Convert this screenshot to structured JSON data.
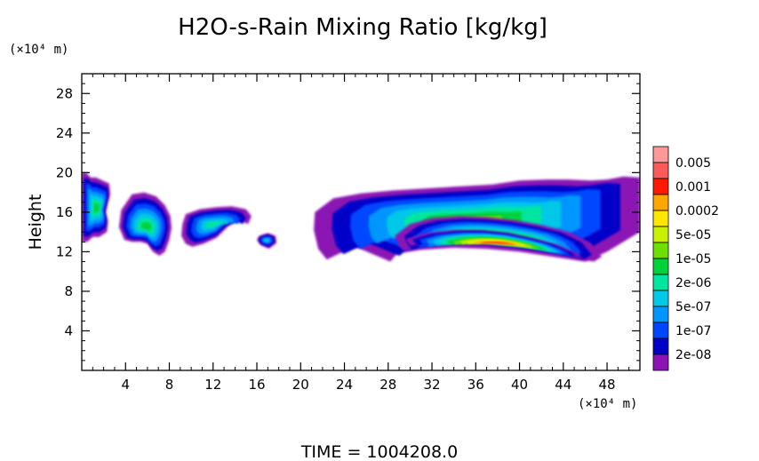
{
  "chart_data": {
    "type": "heatmap",
    "title": "H2O-s-Rain Mixing Ratio [kg/kg]",
    "xlabel": "",
    "ylabel": "Height",
    "x_unit": "(×10⁴ m)",
    "y_unit": "(×10⁴ m)",
    "xlim": [
      0,
      51
    ],
    "ylim": [
      0,
      30
    ],
    "x_ticks": [
      4,
      8,
      12,
      16,
      20,
      24,
      28,
      32,
      36,
      40,
      44,
      48
    ],
    "y_ticks": [
      4,
      8,
      12,
      16,
      20,
      24,
      28
    ],
    "colorbar": {
      "labels": [
        "0.005",
        "0.001",
        "0.0002",
        "5e-05",
        "1e-05",
        "2e-06",
        "5e-07",
        "1e-07",
        "2e-08"
      ],
      "colors": [
        "#ff9999",
        "#ff5a5a",
        "#ff1a00",
        "#ffa500",
        "#ffe600",
        "#c8f000",
        "#6ee000",
        "#00d23c",
        "#00e6a0",
        "#00c8e6",
        "#0096ff",
        "#0046ff",
        "#0000c8",
        "#8c14b4"
      ]
    },
    "series": [
      {
        "x": [
          0,
          0.4,
          0.8,
          1.3,
          1.9,
          2.5,
          2.6,
          2.4,
          2.2,
          2.4,
          2.3,
          1.6,
          1.0,
          0.5,
          0.2,
          0
        ],
        "y": [
          20.0,
          20.0,
          19.5,
          19.5,
          19.2,
          18.9,
          17.8,
          17.0,
          16.0,
          15.0,
          14.0,
          13.5,
          13.5,
          13.0,
          13.0,
          13.0
        ],
        "level": 0.8
      },
      {
        "x": [
          3.6,
          4.6,
          5.7,
          6.8,
          7.6,
          8.1,
          8.2,
          8.0,
          7.6,
          7.1,
          6.5,
          6.0,
          5.4,
          4.6,
          3.9,
          3.4,
          3.5
        ],
        "y": [
          16.2,
          17.8,
          18.0,
          17.6,
          16.7,
          15.6,
          14.4,
          13.2,
          12.0,
          11.6,
          12.0,
          12.8,
          13.0,
          13.0,
          13.2,
          14.5,
          15.3
        ],
        "level": 0.9
      },
      {
        "x": [
          9.5,
          10.8,
          12.3,
          13.7,
          15.0,
          15.5,
          15.2,
          14.4,
          13.4,
          12.3,
          11.1,
          10.1,
          9.5,
          9.1,
          9.2
        ],
        "y": [
          15.8,
          16.3,
          16.5,
          16.6,
          16.3,
          15.6,
          14.8,
          15.2,
          14.6,
          13.4,
          12.8,
          12.5,
          12.8,
          13.6,
          14.8
        ],
        "level": 0.7
      },
      {
        "x": [
          16.2,
          17.0,
          17.7,
          17.8,
          17.1,
          16.3,
          16.0
        ],
        "y": [
          13.6,
          13.9,
          13.6,
          12.9,
          12.3,
          12.7,
          13.2
        ],
        "level": 0.5
      },
      {
        "x": [
          21.3,
          23.0,
          25.5,
          28.5,
          31.5,
          34.5,
          37.5,
          40.0,
          42.5,
          44.5,
          46.5,
          48.0,
          49.5,
          51.0,
          51.0,
          49.5,
          48.0,
          46.0,
          43.0,
          40.0,
          37.0,
          34.0,
          31.0,
          28.8,
          28.2,
          26.5,
          25.0,
          23.5,
          22.4,
          21.6,
          21.2
        ],
        "y": [
          16.0,
          17.4,
          17.9,
          18.2,
          18.4,
          18.6,
          18.8,
          19.2,
          19.3,
          19.3,
          19.2,
          19.3,
          19.6,
          19.5,
          14.0,
          13.0,
          12.0,
          11.0,
          11.5,
          12.0,
          12.3,
          12.4,
          12.2,
          11.8,
          11.0,
          11.8,
          12.5,
          11.8,
          11.2,
          12.3,
          14.2
        ],
        "level": 1.0
      },
      {
        "x": [
          28.6,
          30.0,
          32.0,
          34.5,
          37.0,
          39.5,
          42.0,
          44.5,
          46.5,
          47.5,
          46.8,
          45.5,
          44.0,
          42.0,
          40.0,
          37.5,
          35.0,
          32.5,
          30.5,
          29.4,
          29.0
        ],
        "y": [
          13.6,
          14.8,
          15.4,
          15.6,
          15.5,
          15.2,
          14.7,
          14.0,
          12.9,
          11.5,
          11.0,
          11.3,
          11.8,
          12.2,
          12.5,
          12.8,
          13.0,
          12.9,
          12.5,
          12.1,
          12.6
        ],
        "level": 1.5
      },
      {
        "x": [
          29.6,
          31.5,
          34.0,
          36.5,
          39.0,
          41.5,
          43.5,
          45.2,
          45.8,
          45.0,
          43.5,
          41.5,
          39.0,
          36.5,
          34.0,
          31.5,
          30.0
        ],
        "y": [
          13.3,
          13.9,
          14.2,
          14.2,
          13.9,
          13.3,
          12.7,
          11.9,
          11.4,
          11.5,
          11.9,
          12.3,
          12.6,
          12.9,
          13.0,
          12.8,
          12.6
        ],
        "level": 2.2
      }
    ]
  },
  "time_label": "TIME  =  1004208.0"
}
